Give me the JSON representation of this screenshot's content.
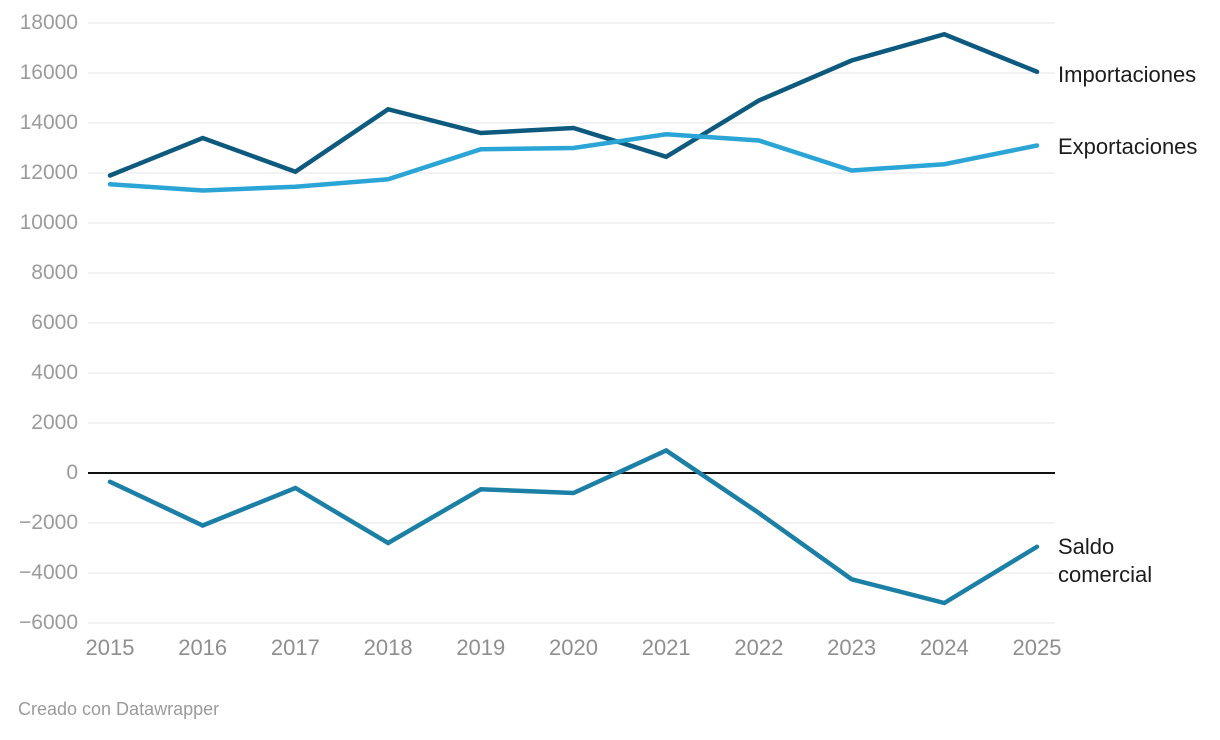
{
  "chart_data": {
    "type": "line",
    "x": [
      2015,
      2016,
      2017,
      2018,
      2019,
      2020,
      2021,
      2022,
      2023,
      2024,
      2025
    ],
    "x_tick_labels": [
      "2015",
      "2016",
      "2017",
      "2018",
      "2019",
      "2020",
      "2021",
      "2022",
      "2023",
      "2024",
      "2025"
    ],
    "series": [
      {
        "name": "Importaciones",
        "color": "#0e5a7e",
        "values": [
          11900,
          13400,
          12050,
          14550,
          13600,
          13800,
          12650,
          14900,
          16500,
          17550,
          16050
        ]
      },
      {
        "name": "Exportaciones",
        "color": "#2aa5d6",
        "values": [
          11550,
          11300,
          11450,
          11750,
          12950,
          13000,
          13550,
          13300,
          12100,
          12350,
          13100
        ]
      },
      {
        "name": "Saldo comercial",
        "color": "#1b7fa6",
        "values": [
          -350,
          -2100,
          -600,
          -2800,
          -650,
          -800,
          900,
          -1600,
          -4250,
          -5200,
          -2950
        ]
      }
    ],
    "ylim": [
      -6000,
      18000
    ],
    "y_ticks": [
      {
        "value": 18000,
        "label": "18000"
      },
      {
        "value": 16000,
        "label": "16000"
      },
      {
        "value": 14000,
        "label": "14000"
      },
      {
        "value": 12000,
        "label": "12000"
      },
      {
        "value": 10000,
        "label": "10000"
      },
      {
        "value": 8000,
        "label": "8000"
      },
      {
        "value": 6000,
        "label": "6000"
      },
      {
        "value": 4000,
        "label": "4000"
      },
      {
        "value": 2000,
        "label": "2000"
      },
      {
        "value": 0,
        "label": "0"
      },
      {
        "value": -2000,
        "label": "−2000"
      },
      {
        "value": -4000,
        "label": "−4000"
      },
      {
        "value": -6000,
        "label": "−6000"
      }
    ],
    "grid": true,
    "zero_line": true,
    "legend_position": "right-of-line-ends",
    "title": "",
    "xlabel": "",
    "ylabel": ""
  },
  "legend": {
    "importaciones": "Importaciones",
    "exportaciones": "Exportaciones",
    "saldo": "Saldo comercial"
  },
  "colors": {
    "importaciones": "#0e5a7e",
    "exportaciones": "#2aa5d6",
    "saldo": "#1b7fa6",
    "gridline": "#e4e4e4",
    "zero_line": "#111111",
    "tick_text": "#9b9b9b",
    "legend_text": "#1c1c1c"
  },
  "footer": {
    "credit": "Creado con Datawrapper"
  }
}
